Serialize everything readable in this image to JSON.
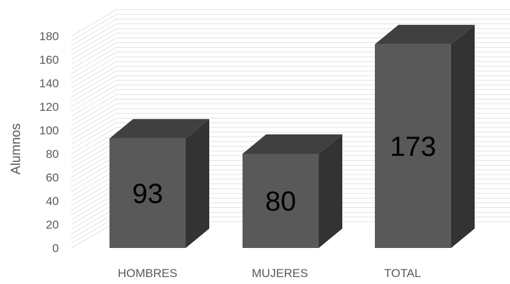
{
  "chart_data": {
    "type": "bar",
    "style": "3d-column",
    "categories": [
      "HOMBRES",
      "MUJERES",
      "TOTAL"
    ],
    "values": [
      93,
      80,
      173
    ],
    "data_labels": [
      "93",
      "80",
      "173"
    ],
    "title": "",
    "xlabel": "",
    "ylabel": "Alumnos",
    "ylim": [
      0,
      180
    ],
    "yticks": [
      "0",
      "20",
      "40",
      "60",
      "80",
      "100",
      "120",
      "140",
      "160",
      "180"
    ],
    "grid": true,
    "legend": "none",
    "colors": {
      "bar_front": "#595959",
      "bar_top": "#404040",
      "bar_side": "#333333",
      "gridline": "#d9d9d9",
      "text": "#595959"
    }
  }
}
